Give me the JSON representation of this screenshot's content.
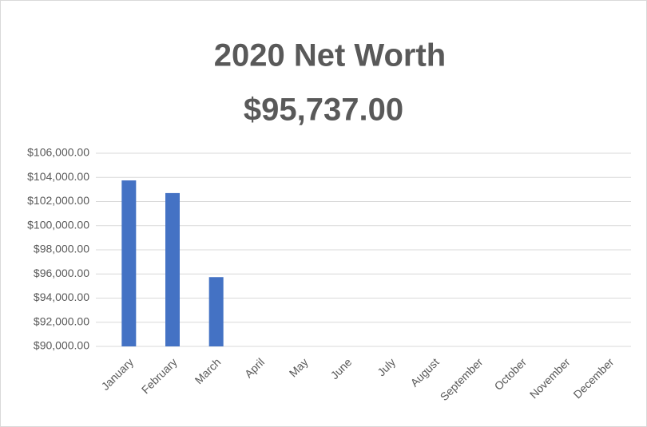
{
  "chart_data": {
    "type": "bar",
    "title": "2020 Net Worth",
    "subtitle": "$95,737.00",
    "categories": [
      "January",
      "February",
      "March",
      "April",
      "May",
      "June",
      "July",
      "August",
      "September",
      "October",
      "November",
      "December"
    ],
    "values": [
      103750,
      102700,
      95737,
      null,
      null,
      null,
      null,
      null,
      null,
      null,
      null,
      null
    ],
    "color": "#4472c4",
    "ylim": [
      90000,
      106000
    ],
    "yticks": [
      {
        "value": 90000,
        "label": "$90,000.00"
      },
      {
        "value": 92000,
        "label": "$92,000.00"
      },
      {
        "value": 94000,
        "label": "$94,000.00"
      },
      {
        "value": 96000,
        "label": "$96,000.00"
      },
      {
        "value": 98000,
        "label": "$98,000.00"
      },
      {
        "value": 100000,
        "label": "$100,000.00"
      },
      {
        "value": 102000,
        "label": "$102,000.00"
      },
      {
        "value": 104000,
        "label": "$104,000.00"
      },
      {
        "value": 106000,
        "label": "$106,000.00"
      }
    ],
    "grid": true
  }
}
